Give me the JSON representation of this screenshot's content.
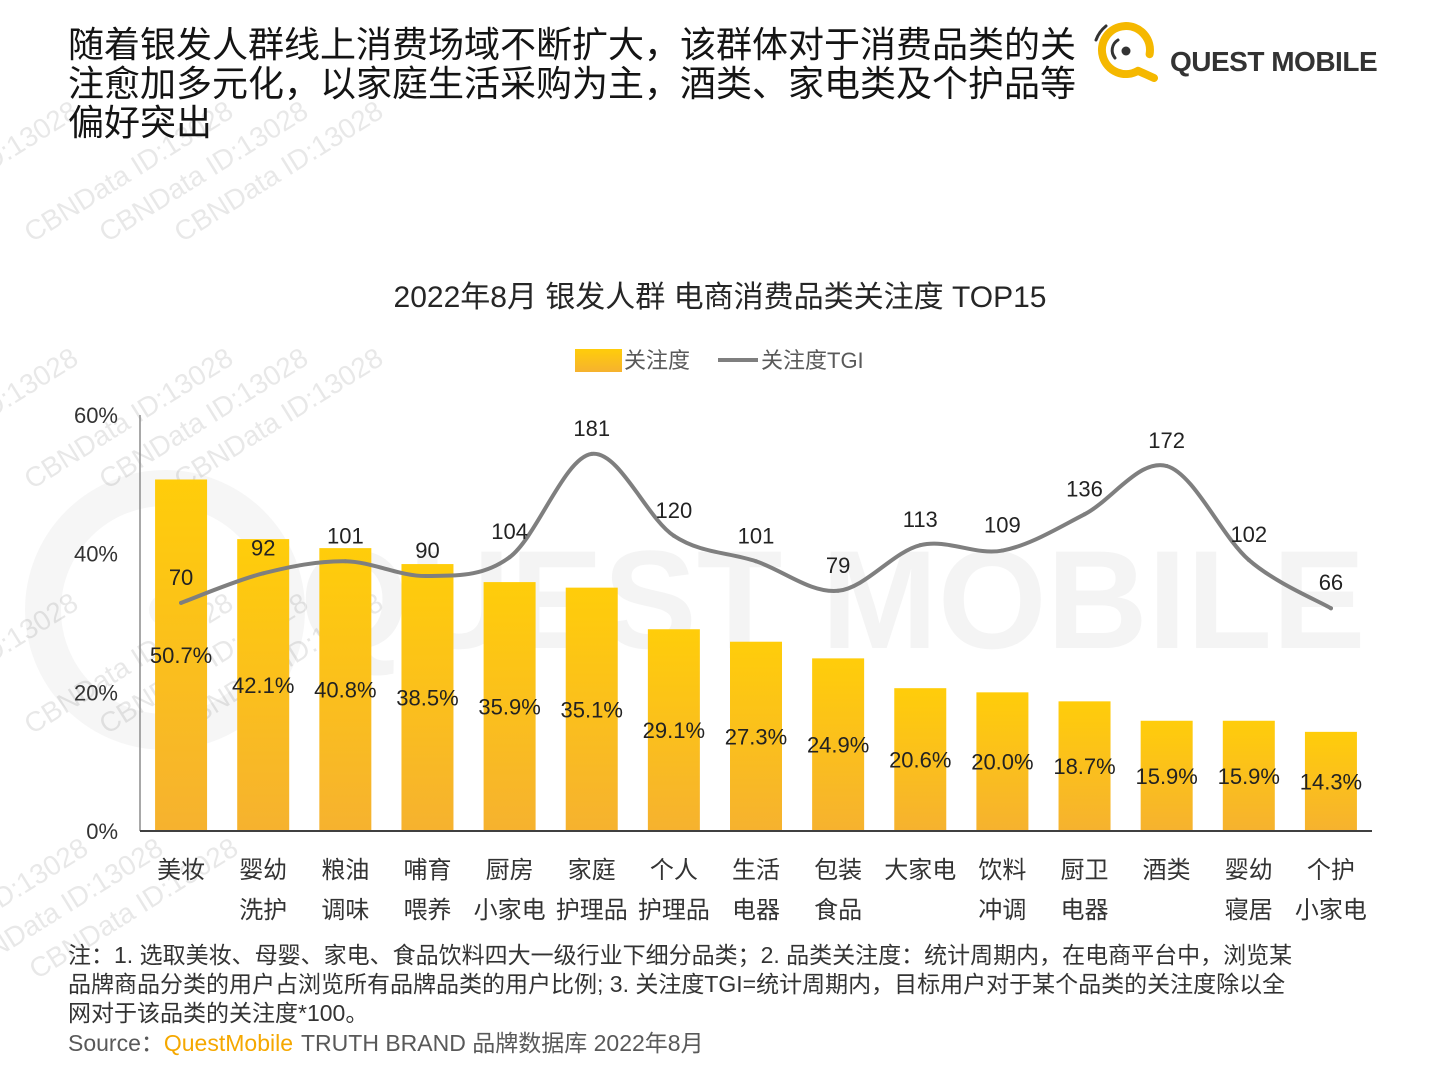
{
  "header": {
    "title_lines": [
      "随着银发人群线上消费场域不断扩大，该群体对于消费品类的关",
      "注愈加多元化，以家庭生活采购为主，酒类、家电类及个护品等",
      "偏好突出"
    ]
  },
  "logo": {
    "text": "QUEST MOBILE",
    "icon": "quest-mobile-ring-icon"
  },
  "watermarks": {
    "id_text": "CBNData ID:13028",
    "brand_text": "QUEST MOBILE"
  },
  "colors": {
    "bar_top": "#FFCD0A",
    "bar_bottom": "#F6B22F",
    "tgi_line": "#7F7F7F",
    "brand_accent": "#F5A800",
    "logo_ring": "#F5B800",
    "text": "#262626"
  },
  "chart_data": {
    "type": "bar",
    "title": "2022年8月 银发人群 电商消费品类关注度 TOP15",
    "categories": [
      [
        "美妆"
      ],
      [
        "婴幼",
        "洗护"
      ],
      [
        "粮油",
        "调味"
      ],
      [
        "哺育",
        "喂养"
      ],
      [
        "厨房",
        "小家电"
      ],
      [
        "家庭",
        "护理品"
      ],
      [
        "个人",
        "护理品"
      ],
      [
        "生活",
        "电器"
      ],
      [
        "包装",
        "食品"
      ],
      [
        "大家电"
      ],
      [
        "饮料",
        "冲调"
      ],
      [
        "厨卫",
        "电器"
      ],
      [
        "酒类"
      ],
      [
        "婴幼",
        "寝居"
      ],
      [
        "个护",
        "小家电"
      ]
    ],
    "series": [
      {
        "name": "关注度",
        "type": "bar",
        "axis": "left",
        "values": [
          50.7,
          42.1,
          40.8,
          38.5,
          35.9,
          35.1,
          29.1,
          27.3,
          24.9,
          20.6,
          20.0,
          18.7,
          15.9,
          15.9,
          14.3
        ],
        "labels": [
          "50.7%",
          "42.1%",
          "40.8%",
          "38.5%",
          "35.9%",
          "35.1%",
          "29.1%",
          "27.3%",
          "24.9%",
          "20.6%",
          "20.0%",
          "18.7%",
          "15.9%",
          "15.9%",
          "14.3%"
        ]
      },
      {
        "name": "关注度TGI",
        "type": "line",
        "axis": "right",
        "smooth": true,
        "values": [
          70,
          92,
          101,
          90,
          104,
          181,
          120,
          101,
          79,
          113,
          109,
          136,
          172,
          102,
          66
        ]
      }
    ],
    "ylim": [
      0,
      60
    ],
    "yticks": [
      0,
      20,
      40,
      60
    ],
    "ytick_labels": [
      "0%",
      "20%",
      "40%",
      "60%"
    ],
    "y2lim": [
      -100,
      210
    ],
    "y2_axis_visible": false,
    "grid": false,
    "legend_position": "top-center"
  },
  "footnote": {
    "lines": [
      "注：1. 选取美妆、母婴、家电、食品饮料四大一级行业下细分品类；2. 品类关注度：统计周期内，在电商平台中，浏览某",
      "品牌商品分类的用户占浏览所有品牌品类的用户比例; 3. 关注度TGI=统计周期内，目标用户对于某个品类的关注度除以全",
      "网对于该品类的关注度*100。"
    ]
  },
  "source": {
    "label": "Source：",
    "brand": "QuestMobile",
    "text": "TRUTH BRAND 品牌数据库 2022年8月"
  }
}
